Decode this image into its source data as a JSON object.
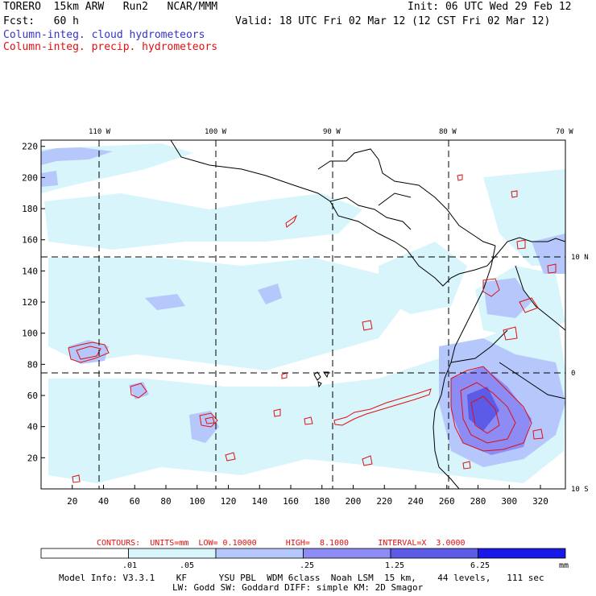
{
  "header": {
    "model": "TORERO  15km ARW   Run2   NCAR/MMM",
    "init": "Init: 06 UTC Wed 29 Feb 12",
    "fcst": "Fcst:   60 h",
    "valid": "Valid: 18 UTC Fri 02 Mar 12 (12 CST Fri 02 Mar 12)",
    "field1": "Column-integ. cloud hydrometeors",
    "field2": "Column-integ. precip. hydrometeors"
  },
  "axes": {
    "top_lon_labels": [
      "110 W",
      "100 W",
      "90 W",
      "80 W",
      "70 W"
    ],
    "right_lat_labels": [
      "10 N",
      "0",
      "10 S"
    ],
    "y_ticks": [
      "220",
      "200",
      "180",
      "160",
      "140",
      "120",
      "100",
      "80",
      "60",
      "40",
      "20"
    ],
    "x_ticks": [
      "20",
      "40",
      "60",
      "80",
      "100",
      "120",
      "140",
      "160",
      "180",
      "200",
      "220",
      "240",
      "260",
      "280",
      "300",
      "320"
    ]
  },
  "contours": {
    "text": "CONTOURS:  UNITS=mm  LOW= 0.10000      HIGH=  8.1000      INTERVAL=X  3.0000"
  },
  "colorbar": {
    "levels": [
      ".01",
      ".05",
      ".25",
      "1.25",
      "6.25"
    ],
    "unit": "mm",
    "colors": [
      "#ffffff",
      "#d7f5fb",
      "#b6c8fb",
      "#8d8cf5",
      "#5b5be8",
      "#1818e8"
    ]
  },
  "footer": {
    "line1": "Model Info: V3.3.1    KF      YSU PBL  WDM 6class  Noah LSM  15 km,    44 levels,   111 sec",
    "line2": "LW: Godd SW: Goddard DIFF: simple KM: 2D Smagor"
  },
  "colors": {
    "precip_contour": "#e01010",
    "coast": "#000000",
    "light_cloud": "#d7f5fb",
    "mid_cloud": "#b6c8fb",
    "heavy_cloud": "#8d8cf5"
  }
}
